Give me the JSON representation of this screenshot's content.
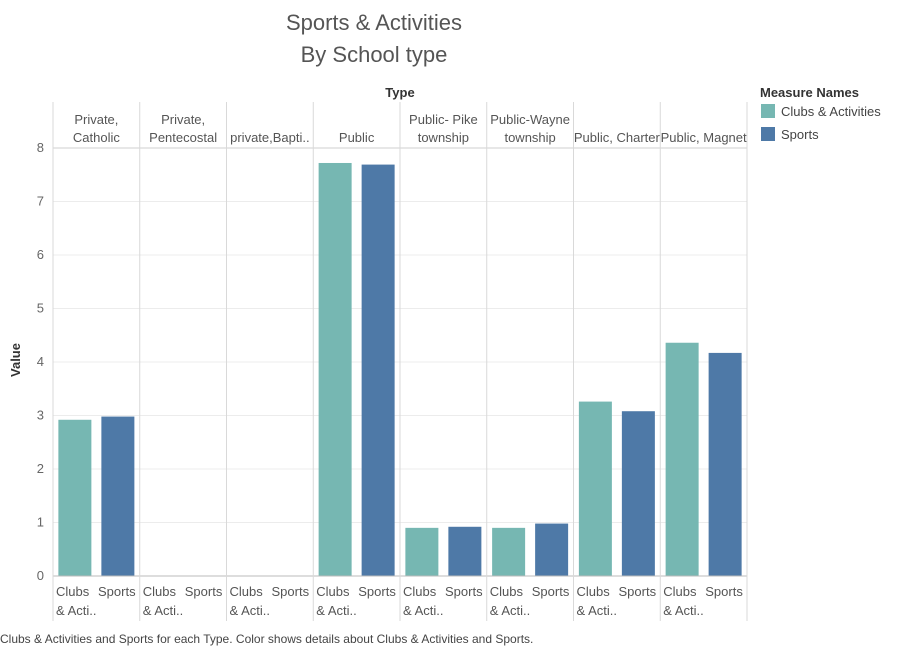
{
  "chart_data": {
    "type": "bar",
    "title": "Sports & Activities",
    "subtitle": "By School type",
    "column_header_title": "Type",
    "ylabel": "Value",
    "ylim": [
      0,
      8
    ],
    "yticks": [
      0,
      1,
      2,
      3,
      4,
      5,
      6,
      7,
      8
    ],
    "groups": [
      {
        "name": "Private, Catholic",
        "label_lines": [
          "Private,",
          "Catholic"
        ]
      },
      {
        "name": "Private, Pentecostal",
        "label_lines": [
          "Private,",
          "Pentecostal"
        ]
      },
      {
        "name": "private,Baptist",
        "label_lines": [
          "private,Bapti.."
        ]
      },
      {
        "name": "Public",
        "label_lines": [
          "Public"
        ]
      },
      {
        "name": "Public- Pike township",
        "label_lines": [
          "Public- Pike",
          "township"
        ]
      },
      {
        "name": "Public-Wayne township",
        "label_lines": [
          "Public-Wayne",
          "township"
        ]
      },
      {
        "name": "Public, Charter",
        "label_lines": [
          "Public, Charter"
        ]
      },
      {
        "name": "Public, Magnet",
        "label_lines": [
          "Public, Magnet"
        ]
      }
    ],
    "bar_labels": [
      {
        "name": "Clubs & Activities",
        "label_lines": [
          "Clubs",
          "& Acti.."
        ]
      },
      {
        "name": "Sports",
        "label_lines": [
          "Sports"
        ]
      }
    ],
    "series": [
      {
        "name": "Clubs & Activities",
        "color": "#76b7b2",
        "values": [
          2.92,
          null,
          null,
          7.72,
          0.9,
          0.9,
          3.26,
          4.36
        ]
      },
      {
        "name": "Sports",
        "color": "#4e79a7",
        "values": [
          2.98,
          null,
          null,
          7.69,
          0.92,
          0.98,
          3.08,
          4.17
        ]
      }
    ],
    "legend": {
      "title": "Measure Names",
      "position": "top-right",
      "items": [
        "Clubs & Activities",
        "Sports"
      ]
    },
    "caption": "Clubs & Activities and Sports for each Type.  Color shows details about Clubs & Activities and Sports."
  }
}
